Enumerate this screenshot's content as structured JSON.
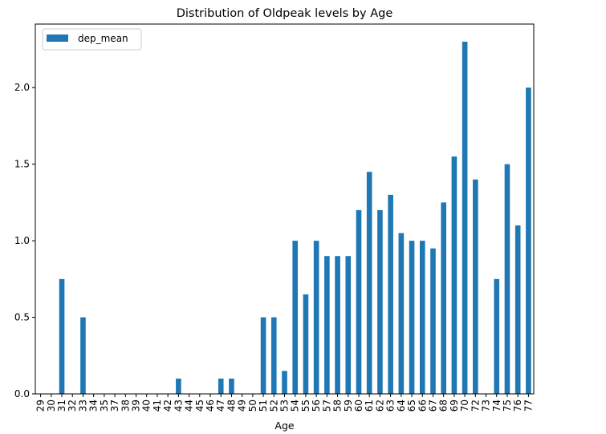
{
  "chart_data": {
    "type": "bar",
    "title": "Distribution of Oldpeak levels by Age",
    "xlabel": "Age",
    "ylabel": "",
    "categories": [
      "29",
      "30",
      "31",
      "32",
      "33",
      "34",
      "35",
      "37",
      "38",
      "39",
      "40",
      "41",
      "42",
      "43",
      "44",
      "45",
      "46",
      "47",
      "48",
      "49",
      "50",
      "51",
      "52",
      "53",
      "54",
      "55",
      "56",
      "57",
      "58",
      "59",
      "60",
      "61",
      "62",
      "63",
      "64",
      "65",
      "66",
      "67",
      "68",
      "69",
      "70",
      "72",
      "73",
      "74",
      "75",
      "76",
      "77"
    ],
    "series": [
      {
        "name": "dep_mean",
        "color": "#1f77b4",
        "values": [
          0,
          0,
          0.75,
          0,
          0.5,
          0,
          0,
          0,
          0,
          0,
          0,
          0,
          0,
          0.1,
          0,
          0,
          0,
          0.1,
          0.1,
          0,
          0,
          0.5,
          0.5,
          0.15,
          1.0,
          0.65,
          1.0,
          0.9,
          0.9,
          0.9,
          1.2,
          1.45,
          1.2,
          1.3,
          1.05,
          1.0,
          1.0,
          0.95,
          1.25,
          1.55,
          2.3,
          1.4,
          0,
          0.75,
          1.5,
          1.1,
          2.0
        ]
      }
    ],
    "ylim": [
      0,
      2.415
    ],
    "yticks": [
      "0.0",
      "0.5",
      "1.0",
      "1.5",
      "2.0"
    ],
    "legend": {
      "position": "top-left",
      "entries": [
        "dep_mean"
      ]
    },
    "grid": false
  }
}
